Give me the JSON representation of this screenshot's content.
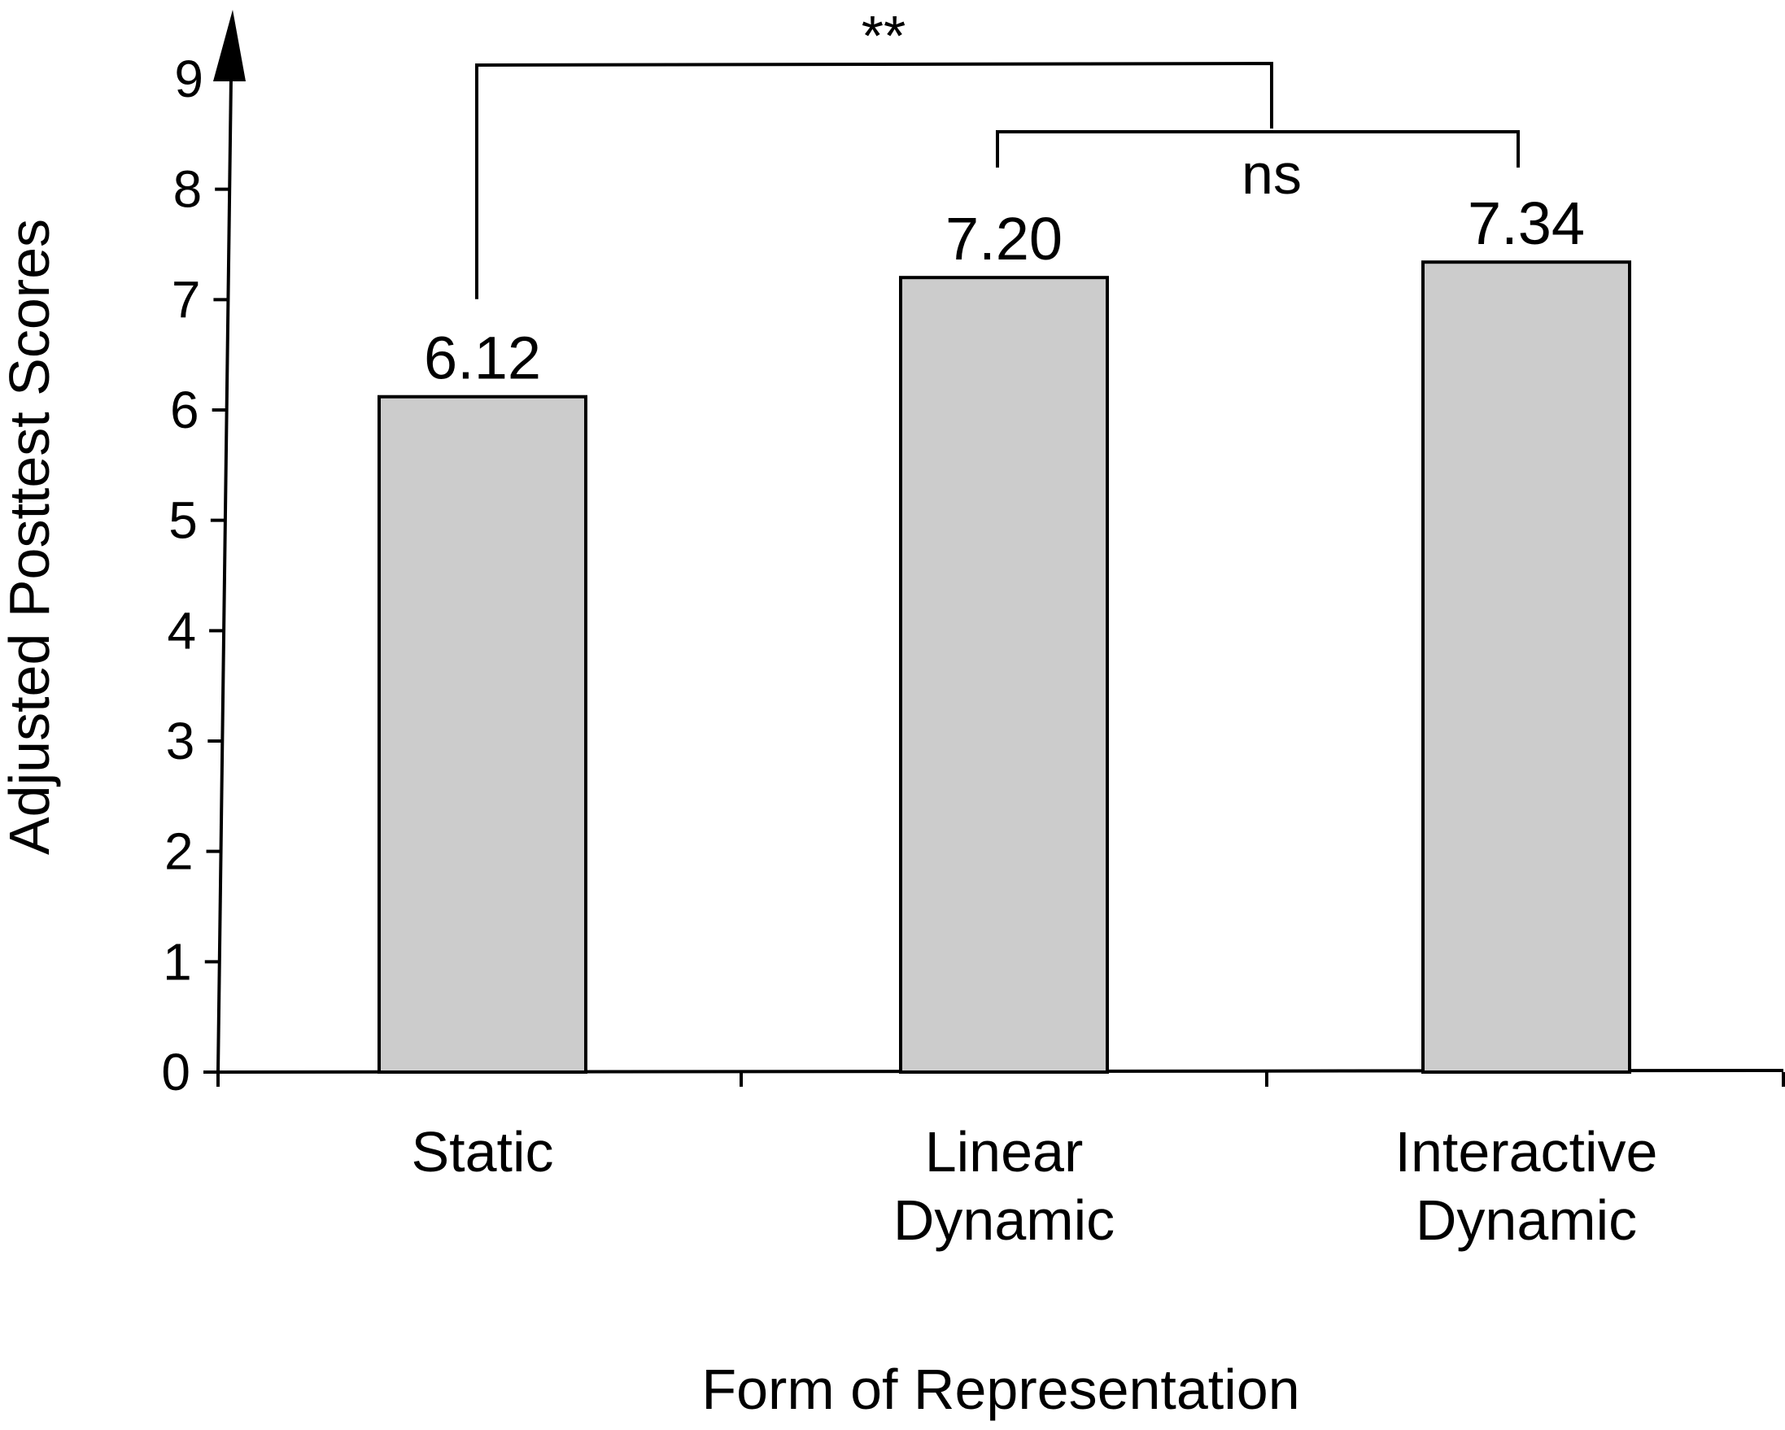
{
  "chart_data": {
    "type": "bar",
    "categories": [
      [
        "Static"
      ],
      [
        "Linear",
        "Dynamic"
      ],
      [
        "Interactive",
        "Dynamic"
      ]
    ],
    "values": [
      6.12,
      7.2,
      7.34
    ],
    "value_labels": [
      "6.12",
      "7.20",
      "7.34"
    ],
    "xlabel": "Form of Representation",
    "ylabel": "Adjusted Posttest Scores",
    "ylim": [
      0,
      9
    ],
    "yticks": [
      0,
      1,
      2,
      3,
      4,
      5,
      6,
      7,
      8,
      9
    ],
    "grid": false,
    "legend": "none",
    "bar_color": "#cccccc",
    "bar_edge_color": "#000000",
    "significance": [
      {
        "label": "**",
        "from": [
          "Static"
        ],
        "to": [
          "Linear Dynamic",
          "Interactive Dynamic"
        ]
      },
      {
        "label": "ns",
        "from": [
          "Linear Dynamic"
        ],
        "to": [
          "Interactive Dynamic"
        ]
      }
    ]
  }
}
